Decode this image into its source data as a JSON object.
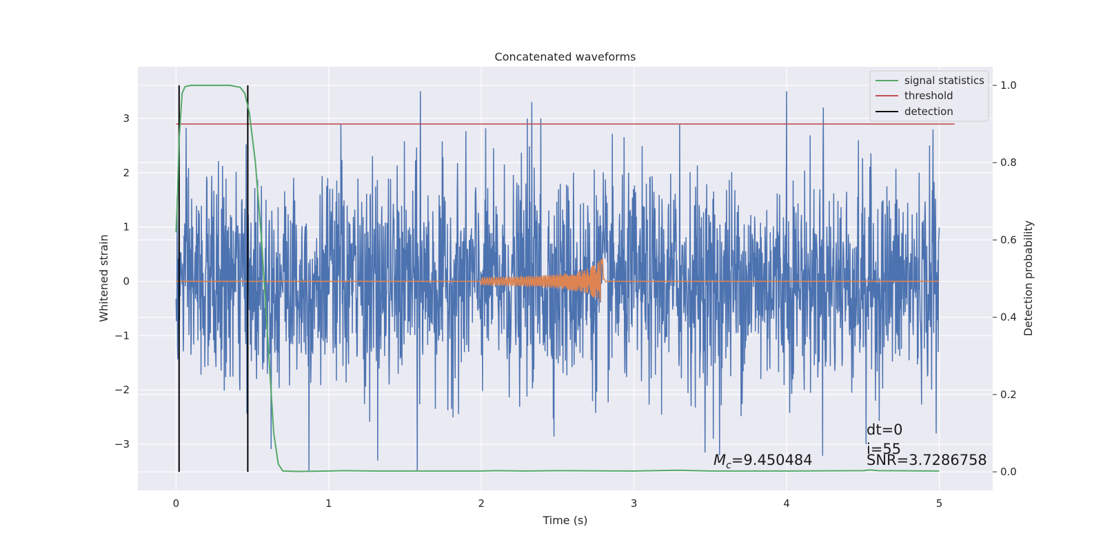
{
  "chart_data": {
    "type": "line",
    "title": "Concatenated waveforms",
    "xlabel": "Time (s)",
    "ylabel": "Whitened strain",
    "y2label": "Detection probability",
    "xlim": [
      -0.25,
      5.35
    ],
    "ylim": [
      -3.85,
      3.95
    ],
    "y2lim": [
      -0.048,
      1.048
    ],
    "xticks": [
      0,
      1,
      2,
      3,
      4,
      5
    ],
    "yticks": [
      -3,
      -2,
      -1,
      0,
      1,
      2,
      3
    ],
    "y2ticks": [
      0.0,
      0.2,
      0.4,
      0.6,
      0.8,
      1.0
    ],
    "ytick_labels": [
      "−3",
      "−2",
      "−1",
      "0",
      "1",
      "2",
      "3"
    ],
    "y2tick_labels": [
      "0.0",
      "0.2",
      "0.4",
      "0.6",
      "0.8",
      "1.0"
    ],
    "grid": true,
    "legend_position": "top-right",
    "legend": [
      "signal statistics",
      "threshold",
      "detection"
    ],
    "colors": {
      "strain": "#4c72b0",
      "waveform": "#dd8452",
      "signal_statistics": "#55a868",
      "threshold": "#c44e52",
      "detection": "#000000",
      "background": "#eaeaf2",
      "grid": "#ffffff"
    },
    "series": [
      {
        "name": "whitened strain",
        "axis": "left",
        "description_range": [
          0.0,
          5.0
        ],
        "amplitude_envelope": 3.5
      },
      {
        "name": "injected waveform",
        "axis": "left",
        "x_range": [
          2.0,
          2.8
        ],
        "peak_amplitude": 0.5
      },
      {
        "name": "signal statistics",
        "axis": "right",
        "x": [
          0.0,
          0.01,
          0.02,
          0.04,
          0.06,
          0.1,
          0.2,
          0.35,
          0.42,
          0.45,
          0.48,
          0.52,
          0.56,
          0.6,
          0.64,
          0.67,
          0.7,
          0.8,
          1.0,
          1.1,
          1.3,
          1.6,
          2.0,
          2.1,
          2.3,
          2.5,
          3.0,
          3.3,
          3.5,
          4.0,
          4.5,
          4.55,
          4.6,
          5.0
        ],
        "y": [
          0.62,
          0.72,
          0.86,
          0.98,
          0.997,
          1.0,
          1.0,
          1.0,
          0.995,
          0.98,
          0.93,
          0.8,
          0.6,
          0.35,
          0.1,
          0.02,
          0.002,
          0.001,
          0.002,
          0.003,
          0.002,
          0.002,
          0.002,
          0.003,
          0.002,
          0.003,
          0.002,
          0.004,
          0.002,
          0.002,
          0.003,
          0.005,
          0.003,
          0.002
        ]
      },
      {
        "name": "threshold",
        "axis": "right",
        "x": [
          0.0,
          5.1
        ],
        "y": [
          0.9,
          0.9
        ]
      },
      {
        "name": "detection",
        "axis": "right",
        "x": [
          0.02,
          0.47
        ],
        "y": [
          0.0,
          1.0
        ]
      }
    ],
    "spikes": [
      [
        0.87,
        -3.5
      ],
      [
        1.08,
        2.9
      ],
      [
        1.32,
        -3.3
      ],
      [
        1.58,
        -3.5
      ],
      [
        1.6,
        3.6
      ],
      [
        2.3,
        3.0
      ],
      [
        2.33,
        3.3
      ],
      [
        2.39,
        3.0
      ],
      [
        3.3,
        2.9
      ],
      [
        3.52,
        -2.9
      ],
      [
        3.56,
        -3.2
      ],
      [
        4.0,
        3.5
      ],
      [
        4.24,
        3.2
      ],
      [
        4.52,
        -3.0
      ],
      [
        4.96,
        2.8
      ],
      [
        4.98,
        -2.8
      ]
    ],
    "annotations": {
      "mc_symbol": "M",
      "mc_subscript": "c",
      "mc_value": "=9.450484",
      "dt": "dt=0",
      "index": "i=55",
      "snr": "SNR=3.7286758"
    }
  }
}
